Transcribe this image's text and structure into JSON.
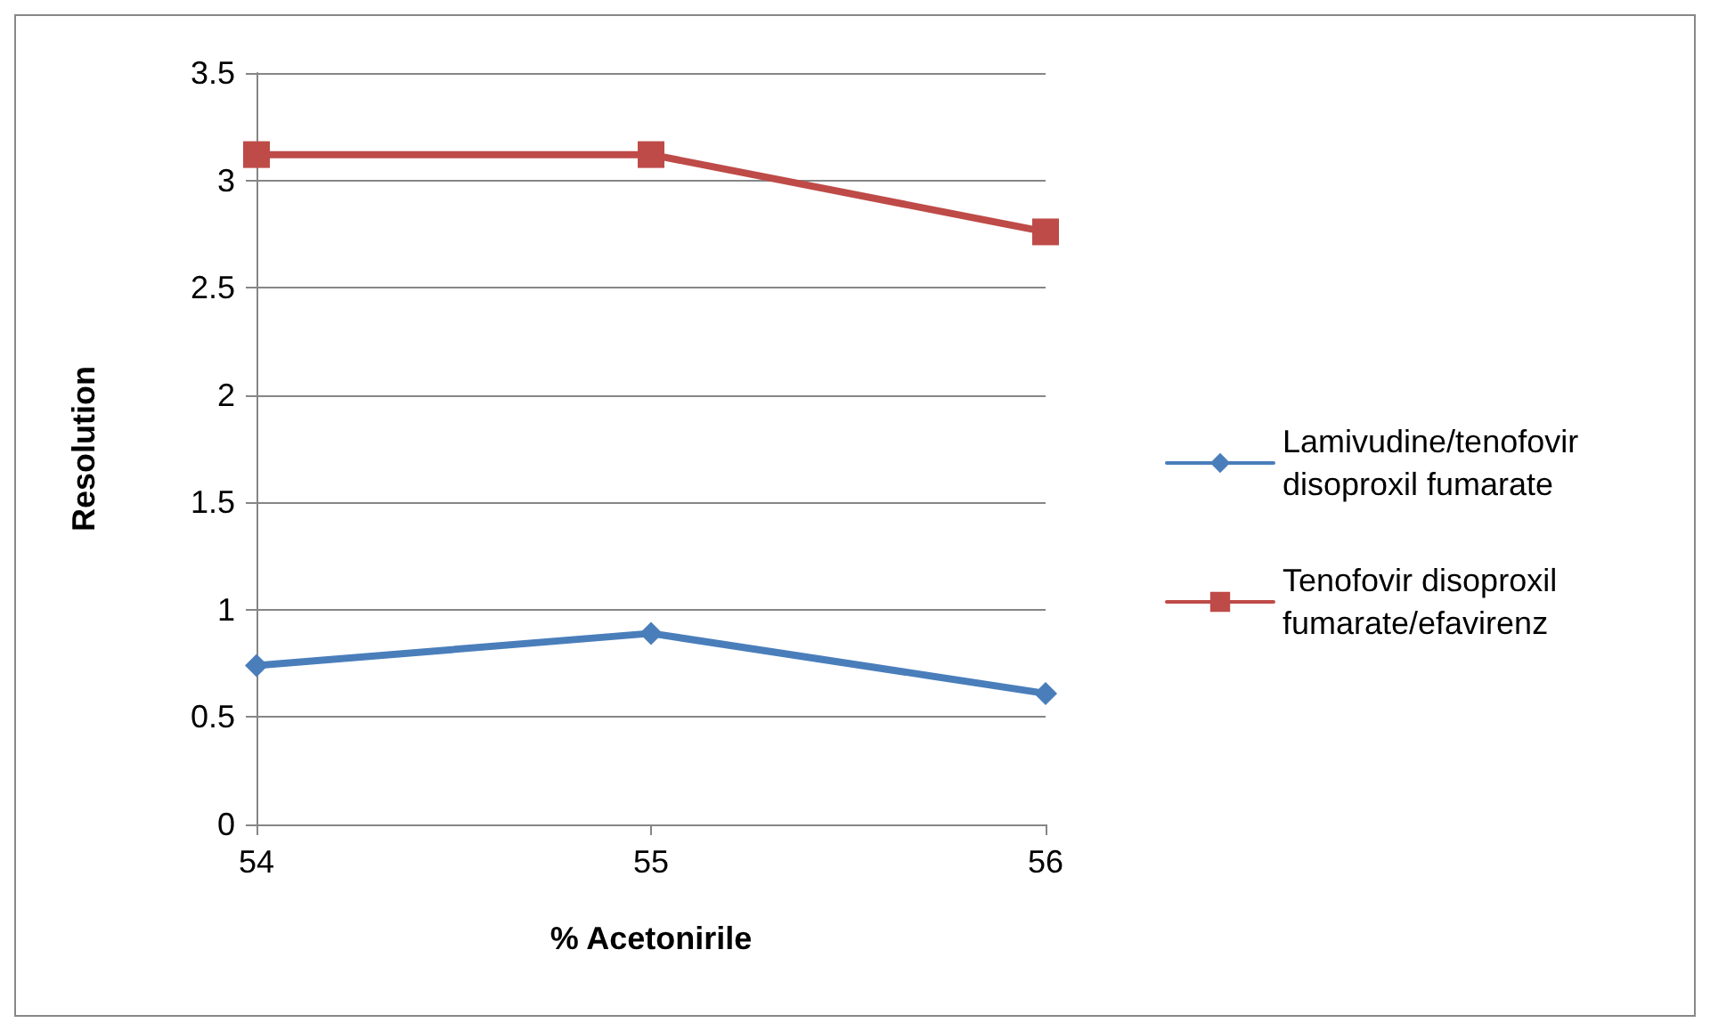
{
  "chart_data": {
    "type": "line",
    "xlabel": "% Acetonirile",
    "ylabel": "Resolution",
    "categories": [
      "54",
      "55",
      "56"
    ],
    "series": [
      {
        "name": "Lamivudine/tenofovir disoproxil fumarate",
        "color": "#4a7ebb",
        "marker": "diamond",
        "values": [
          0.74,
          0.89,
          0.61
        ]
      },
      {
        "name": "Tenofovir disoproxil fumarate/efavirenz",
        "color": "#be4b48",
        "marker": "square",
        "values": [
          3.12,
          3.12,
          2.76
        ]
      }
    ],
    "ylim": [
      0,
      3.5
    ],
    "yticks": [
      0,
      0.5,
      1,
      1.5,
      2,
      2.5,
      3,
      3.5
    ],
    "grid": "y",
    "legend": "right",
    "line_style": "solid"
  }
}
